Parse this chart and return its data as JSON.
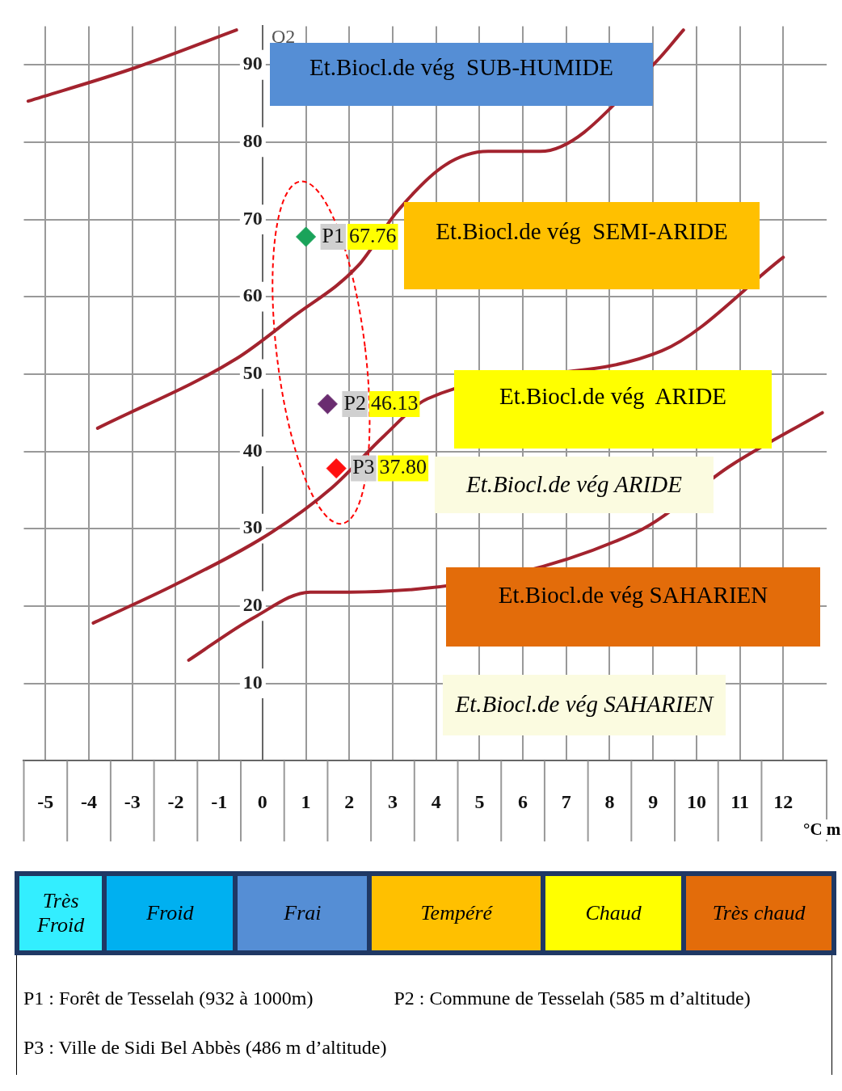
{
  "chart_data": {
    "type": "scatter",
    "ylabel": "Q2",
    "xlabel": "°C m",
    "xlim": [
      -5.5,
      13
    ],
    "ylim": [
      0,
      95
    ],
    "xticks": [
      -5,
      -4,
      -3,
      -2,
      -1,
      0,
      1,
      2,
      3,
      4,
      5,
      6,
      7,
      8,
      9,
      10,
      11,
      12
    ],
    "yticks": [
      10,
      20,
      30,
      40,
      50,
      60,
      70,
      80,
      90
    ],
    "grid": true,
    "legend": false,
    "series": [
      {
        "type": "line",
        "color": "#a3232e",
        "marker": "none",
        "line_style": "solid",
        "x": [
          -5.4,
          -3,
          -0.6
        ],
        "values": [
          85.3,
          89.5,
          94.5
        ]
      },
      {
        "type": "line",
        "color": "#a3232e",
        "marker": "none",
        "line_style": "solid",
        "x": [
          -3.8,
          -0.6,
          0.7,
          2.2,
          3.1,
          4.2,
          5.2,
          6.4,
          9,
          9.7
        ],
        "values": [
          43,
          52,
          57.4,
          64,
          71,
          77,
          78.8,
          78.8,
          90,
          94.5
        ]
      },
      {
        "type": "line",
        "color": "#a3232e",
        "marker": "none",
        "line_style": "solid",
        "x": [
          -3.9,
          -2,
          0.2,
          1.6,
          2.8,
          3.8,
          9.2,
          12
        ],
        "values": [
          17.8,
          22.8,
          29.5,
          35.3,
          42,
          46.8,
          53,
          65.1
        ]
      },
      {
        "type": "line",
        "color": "#a3232e",
        "marker": "none",
        "line_style": "solid",
        "x": [
          -1.7,
          -0.2,
          1.1,
          2,
          8.6,
          10.8,
          12.9
        ],
        "values": [
          13,
          18.5,
          21.8,
          21.8,
          29.5,
          38.2,
          45
        ]
      },
      {
        "type": "scatter",
        "name": "P1",
        "color": "#1aa35a",
        "marker": "diamond",
        "x": [
          1.0
        ],
        "values": [
          67.76
        ],
        "value_labels": [
          "67.76"
        ]
      },
      {
        "type": "scatter",
        "name": "P2",
        "color": "#6a2c70",
        "marker": "diamond",
        "x": [
          1.5
        ],
        "values": [
          46.13
        ],
        "value_labels": [
          "46.13"
        ]
      },
      {
        "type": "scatter",
        "name": "P3",
        "color": "#ff1010",
        "marker": "diamond",
        "x": [
          1.7
        ],
        "values": [
          37.8
        ],
        "value_labels": [
          "37.80"
        ]
      }
    ],
    "annotations": [
      "Et.Biocl.de vég  SUB-HUMIDE",
      "Et.Biocl.de vég  SEMI-ARIDE",
      "Et.Biocl.de vég  ARIDE",
      "Et.Biocl.de vég ARIDE",
      "Et.Biocl.de vég SAHARIEN",
      "Et.Biocl.de vég SAHARIEN",
      "Très Froid",
      "Froid",
      "Frai",
      "Tempéré",
      "Chaud",
      "Très chaud",
      "P1 : Forêt de Tesselah (932 à 1000m)",
      "P2 : Commune de Tesselah (585 m d’altitude)",
      "P3 : Ville  de Sidi Bel Abbès (486 m  d’altitude)"
    ]
  }
}
